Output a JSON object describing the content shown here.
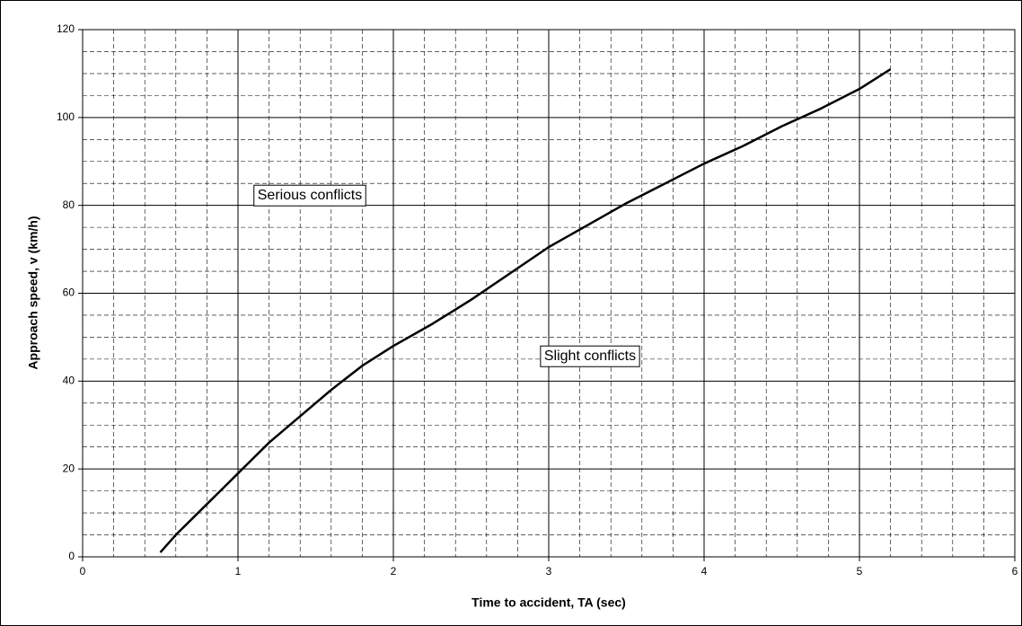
{
  "chart_data": {
    "type": "line",
    "xlabel": "Time to accident, TA (sec)",
    "ylabel": "Approach speed, v (km/h)",
    "annotations": [
      "Serious conflicts",
      "Slight conflicts"
    ],
    "x": [
      0.5,
      0.6,
      0.8,
      1,
      1.2,
      1.4,
      1.6,
      1.8,
      2,
      2.25,
      2.5,
      2.75,
      3,
      3.25,
      3.5,
      3.75,
      4,
      4.25,
      4.5,
      4.75,
      5,
      5.2
    ],
    "series": [
      {
        "color": "#000000",
        "values": [
          1,
          5,
          12,
          19,
          26,
          32,
          38,
          43.5,
          48,
          53,
          58.5,
          64.5,
          70.5,
          75.5,
          80.5,
          85,
          89.5,
          93.5,
          98,
          102,
          106.5,
          111
        ]
      }
    ],
    "xlim": [
      0,
      6
    ],
    "xticks": [
      0,
      1,
      2,
      3,
      4,
      5,
      6
    ],
    "ylim": [
      0,
      120
    ],
    "yticks": [
      0,
      20,
      40,
      60,
      80,
      100,
      120
    ],
    "grid": true
  }
}
